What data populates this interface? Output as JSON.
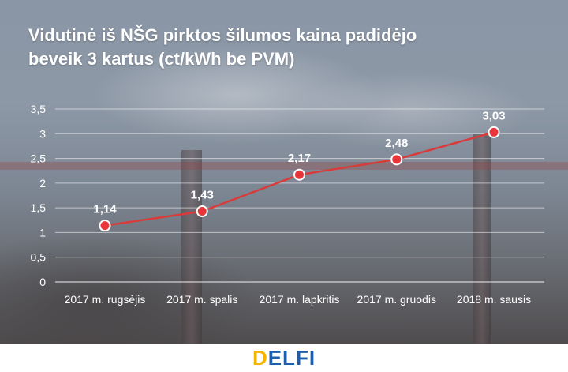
{
  "title_lines": [
    "Vidutinė iš NŠG pirktos šilumos kaina padidėjo",
    "beveik 3 kartus (ct/kWh be PVM)"
  ],
  "logo": {
    "parts": [
      "D",
      "ELFI"
    ],
    "colors": [
      "#f5b400",
      "#1b5fae"
    ]
  },
  "colors": {
    "line": "#d93b3b",
    "marker_fill": "#e8353a",
    "marker_stroke": "#ffffff",
    "grid": "#ffffff",
    "text": "#ffffff"
  },
  "chart_data": {
    "type": "line",
    "title": "Vidutinė iš NŠG pirktos šilumos kaina padidėjo beveik 3 kartus (ct/kWh be PVM)",
    "xlabel": "",
    "ylabel": "",
    "categories": [
      "2017 m. rugsėjis",
      "2017 m. spalis",
      "2017 m. lapkritis",
      "2017 m. gruodis",
      "2018 m. sausis"
    ],
    "values": [
      1.14,
      1.43,
      2.17,
      2.48,
      3.03
    ],
    "data_labels": [
      "1,14",
      "1,43",
      "2,17",
      "2,48",
      "3,03"
    ],
    "yticks": [
      0,
      0.5,
      1,
      1.5,
      2,
      2.5,
      3,
      3.5
    ],
    "ytick_labels": [
      "0",
      "0,5",
      "1",
      "1,5",
      "2",
      "2,5",
      "3",
      "3,5"
    ],
    "ylim": [
      0,
      3.5
    ],
    "grid": true,
    "legend": "none"
  }
}
